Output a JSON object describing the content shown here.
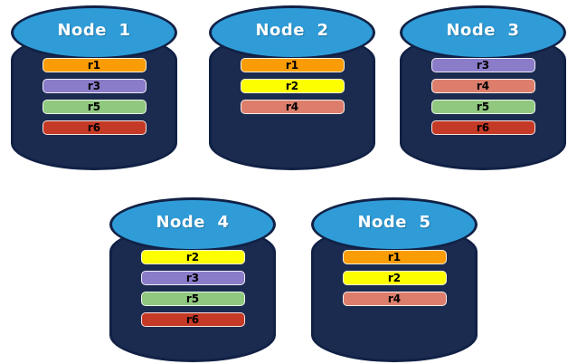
{
  "palette": {
    "cylinder_top_blue": "#2F9CD8",
    "cylinder_body_navy": "#1B2B4F",
    "cylinder_outline_navy": "#112145",
    "bar_border": "#F2F2EC",
    "replica_colors": {
      "r1": "#FA9C05",
      "r2": "#FDFF00",
      "r3": "#8A7CC8",
      "r4": "#DC7E6B",
      "r5": "#8FC87E",
      "r6": "#C53A26"
    }
  },
  "nodes": [
    {
      "title": "Node  1",
      "replicas": [
        {
          "label": "r1",
          "color": "#FA9C05"
        },
        {
          "label": "r3",
          "color": "#8A7CC8"
        },
        {
          "label": "r5",
          "color": "#8FC87E"
        },
        {
          "label": "r6",
          "color": "#C53A26"
        }
      ]
    },
    {
      "title": "Node  2",
      "replicas": [
        {
          "label": "r1",
          "color": "#FA9C05"
        },
        {
          "label": "r2",
          "color": "#FDFF00"
        },
        {
          "label": "r4",
          "color": "#DC7E6B"
        }
      ]
    },
    {
      "title": "Node  3",
      "replicas": [
        {
          "label": "r3",
          "color": "#8A7CC8"
        },
        {
          "label": "r4",
          "color": "#DC7E6B"
        },
        {
          "label": "r5",
          "color": "#8FC87E"
        },
        {
          "label": "r6",
          "color": "#C53A26"
        }
      ]
    },
    {
      "title": "Node  4",
      "replicas": [
        {
          "label": "r2",
          "color": "#FDFF00"
        },
        {
          "label": "r3",
          "color": "#8A7CC8"
        },
        {
          "label": "r5",
          "color": "#8FC87E"
        },
        {
          "label": "r6",
          "color": "#C53A26"
        }
      ]
    },
    {
      "title": "Node  5",
      "replicas": [
        {
          "label": "r1",
          "color": "#FA9C05"
        },
        {
          "label": "r2",
          "color": "#FDFF00"
        },
        {
          "label": "r4",
          "color": "#DC7E6B"
        }
      ]
    }
  ]
}
